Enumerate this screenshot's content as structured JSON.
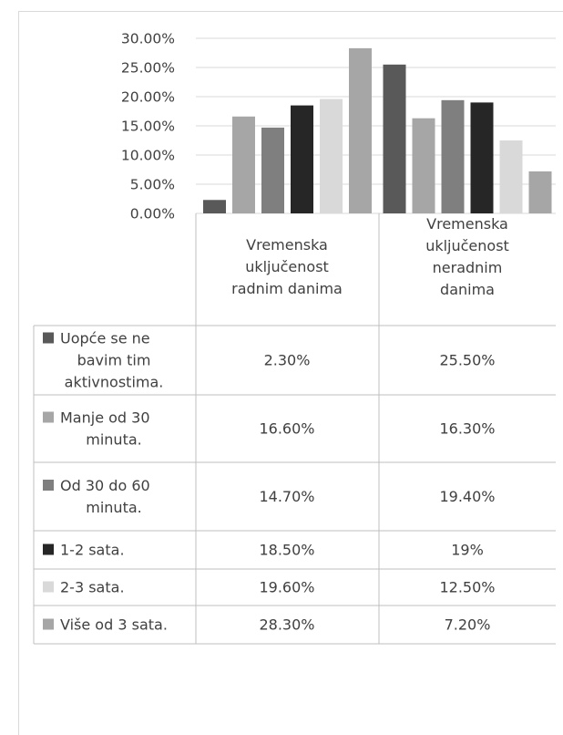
{
  "chart_data": {
    "type": "bar",
    "categories": [
      [
        "Vremenska",
        "uključenost",
        "radnim danima"
      ],
      [
        "Vremenska",
        "uključenost",
        "neradnim",
        "danima"
      ]
    ],
    "y_ticks": [
      "0.00%",
      "5.00%",
      "10.00%",
      "15.00%",
      "20.00%",
      "25.00%",
      "30.00%"
    ],
    "ylim": [
      0,
      30
    ],
    "grid": true,
    "legend": "data-table-below",
    "series": [
      {
        "name": [
          "Uopće se ne",
          "bavim tim",
          "aktivnostima."
        ],
        "color": "#595959",
        "values": [
          2.3,
          25.5
        ],
        "labels": [
          "2.30%",
          "25.50%"
        ]
      },
      {
        "name": [
          "Manje od 30",
          "minuta."
        ],
        "color": "#a6a6a6",
        "values": [
          16.6,
          16.3
        ],
        "labels": [
          "16.60%",
          "16.30%"
        ]
      },
      {
        "name": [
          "Od 30 do 60",
          "minuta."
        ],
        "color": "#7f7f7f",
        "values": [
          14.7,
          19.4
        ],
        "labels": [
          "14.70%",
          "19.40%"
        ]
      },
      {
        "name": [
          "1-2 sata."
        ],
        "color": "#262626",
        "values": [
          18.5,
          19.0
        ],
        "labels": [
          "18.50%",
          "19%"
        ]
      },
      {
        "name": [
          "2-3 sata."
        ],
        "color": "#d9d9d9",
        "values": [
          19.6,
          12.5
        ],
        "labels": [
          "19.60%",
          "12.50%"
        ]
      },
      {
        "name": [
          "Više od 3 sata."
        ],
        "color": "#a6a6a6",
        "values": [
          28.3,
          7.2
        ],
        "labels": [
          "28.30%",
          "7.20%"
        ]
      }
    ]
  }
}
